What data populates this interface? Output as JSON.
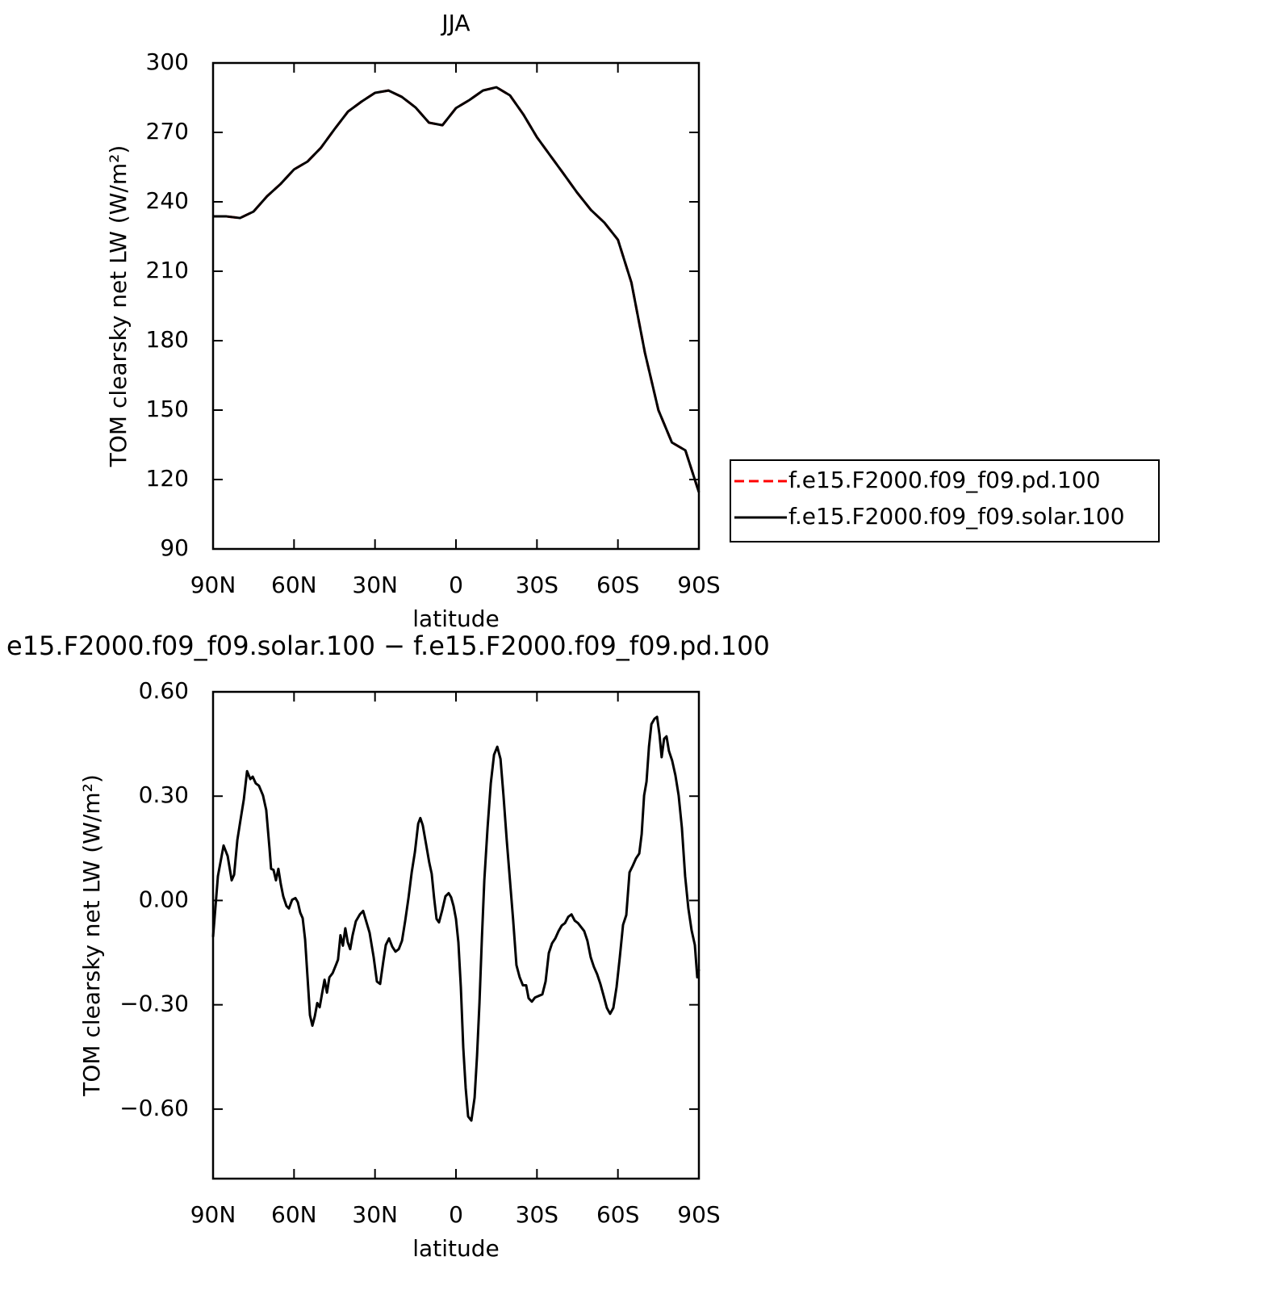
{
  "chart_data": [
    {
      "type": "line",
      "title": "JJA",
      "xlabel": "latitude",
      "ylabel": "TOM clearsky net LW (W/m²)",
      "x": [
        90,
        85,
        80,
        75,
        70,
        65,
        60,
        55,
        50,
        45,
        40,
        35,
        30,
        25,
        20,
        15,
        10,
        5,
        0,
        -5,
        -10,
        -15,
        -20,
        -25,
        -30,
        -35,
        -40,
        -45,
        -50,
        -55,
        -60,
        -65,
        -70,
        -75,
        -80,
        -85,
        -90
      ],
      "series": [
        {
          "name": "f.e15.F2000.f09_f09.pd.100",
          "color": "#ff0000",
          "linestyle": "dashed",
          "values": [
            233.7,
            233.7,
            233,
            235.8,
            242.4,
            247.7,
            254,
            257.4,
            263.4,
            271.4,
            279,
            283.3,
            287.1,
            288.1,
            285.3,
            280.8,
            274.2,
            273.1,
            280.5,
            284,
            288.1,
            289.5,
            286,
            277.7,
            267.9,
            259.9,
            251.9,
            243.8,
            236.5,
            231,
            223.6,
            205.1,
            174.8,
            150,
            136,
            132.6,
            114.5
          ]
        },
        {
          "name": "f.e15.F2000.f09_f09.solar.100",
          "color": "#000000",
          "linestyle": "solid",
          "values": [
            233.7,
            233.7,
            233,
            235.8,
            242.4,
            247.7,
            254,
            257.4,
            263.4,
            271.4,
            279,
            283.3,
            287.1,
            288.1,
            285.3,
            280.8,
            274.2,
            273.1,
            280.5,
            284,
            288.1,
            289.5,
            286,
            277.7,
            267.9,
            259.9,
            251.9,
            243.8,
            236.5,
            231,
            223.6,
            205.1,
            174.8,
            150,
            136,
            132.6,
            114.5
          ]
        }
      ],
      "xlim": [
        90,
        -90
      ],
      "xticks": [
        {
          "value": 90,
          "label": "90N"
        },
        {
          "value": 60,
          "label": "60N"
        },
        {
          "value": 30,
          "label": "30N"
        },
        0,
        {
          "value": -30,
          "label": "30S"
        },
        {
          "value": -60,
          "label": "60S"
        },
        {
          "value": -90,
          "label": "90S"
        }
      ],
      "ylim": [
        90,
        300
      ],
      "yticks": [
        90,
        120,
        150,
        180,
        210,
        240,
        270,
        300
      ],
      "legend": "right"
    },
    {
      "type": "line",
      "title": "e15.F2000.f09_f09.solar.100 − f.e15.F2000.f09_f09.pd.100",
      "xlabel": "latitude",
      "ylabel": "TOM clearsky net LW (W/m²)",
      "x": [
        90,
        88.2,
        86.1,
        84.6,
        83.1,
        82.2,
        81.0,
        79.8,
        78.6,
        77.4,
        76.2,
        75.3,
        74.2,
        73.0,
        71.5,
        70.3,
        69.1,
        68.5,
        67.6,
        66.7,
        65.8,
        64.9,
        64.0,
        62.8,
        61.9,
        60.7,
        59.5,
        58.6,
        57.7,
        56.8,
        55.9,
        55.0,
        54.1,
        53.2,
        52.3,
        51.4,
        50.5,
        49.6,
        48.7,
        47.8,
        46.9,
        45.7,
        44.5,
        43.7,
        42.8,
        41.9,
        41.0,
        40.1,
        39.2,
        38.3,
        37.1,
        35.6,
        34.4,
        32.0,
        30.5,
        29.3,
        28.1,
        26.9,
        26.0,
        24.8,
        23.6,
        22.4,
        21.2,
        20.0,
        18.8,
        17.6,
        16.4,
        15.2,
        14.0,
        13.2,
        12.3,
        11.1,
        9.9,
        9.0,
        8.1,
        7.2,
        6.3,
        5.1,
        3.9,
        2.7,
        1.8,
        0.9,
        0,
        -0.9,
        -1.8,
        -2.7,
        -3.6,
        -4.5,
        -5.7,
        -6.9,
        -7.8,
        -8.7,
        -9.6,
        -10.5,
        -11.7,
        -12.9,
        -14.1,
        -15.3,
        -16.5,
        -17.6,
        -18.8,
        -20.0,
        -21.2,
        -22.4,
        -23.6,
        -24.8,
        -26.0,
        -26.9,
        -28.1,
        -29.3,
        -30.8,
        -32.0,
        -33.2,
        -34.4,
        -35.6,
        -36.8,
        -38.0,
        -39.2,
        -40.4,
        -41.6,
        -42.8,
        -44.0,
        -45.2,
        -46.4,
        -47.5,
        -48.7,
        -49.9,
        -51.1,
        -52.3,
        -53.5,
        -54.7,
        -55.9,
        -57.1,
        -58.3,
        -59.5,
        -60.7,
        -61.9,
        -63.1,
        -64.3,
        -65.5,
        -66.7,
        -67.9,
        -68.8,
        -69.7,
        -70.6,
        -71.5,
        -72.4,
        -73.6,
        -74.5,
        -75.4,
        -76.2,
        -77.1,
        -78.0,
        -78.9,
        -80.1,
        -81.3,
        -82.5,
        -83.7,
        -84.9,
        -86.1,
        -87.3,
        -88.5,
        -89.4,
        -90
      ],
      "values": [
        -0.105,
        0.07,
        0.158,
        0.128,
        0.058,
        0.074,
        0.174,
        0.233,
        0.291,
        0.372,
        0.349,
        0.356,
        0.337,
        0.33,
        0.302,
        0.26,
        0.151,
        0.091,
        0.088,
        0.058,
        0.091,
        0.047,
        0.012,
        -0.016,
        -0.023,
        0.002,
        0.007,
        -0.005,
        -0.035,
        -0.051,
        -0.112,
        -0.221,
        -0.33,
        -0.36,
        -0.333,
        -0.295,
        -0.307,
        -0.267,
        -0.228,
        -0.265,
        -0.221,
        -0.209,
        -0.186,
        -0.17,
        -0.1,
        -0.13,
        -0.08,
        -0.12,
        -0.14,
        -0.1,
        -0.06,
        -0.04,
        -0.03,
        -0.093,
        -0.163,
        -0.233,
        -0.24,
        -0.174,
        -0.128,
        -0.109,
        -0.133,
        -0.147,
        -0.14,
        -0.116,
        -0.058,
        0.007,
        0.081,
        0.14,
        0.221,
        0.237,
        0.216,
        0.163,
        0.109,
        0.077,
        0.007,
        -0.053,
        -0.063,
        -0.028,
        0.012,
        0.021,
        0.009,
        -0.016,
        -0.053,
        -0.121,
        -0.249,
        -0.423,
        -0.54,
        -0.621,
        -0.633,
        -0.567,
        -0.447,
        -0.295,
        -0.109,
        0.058,
        0.209,
        0.337,
        0.419,
        0.442,
        0.407,
        0.302,
        0.174,
        0.058,
        -0.058,
        -0.186,
        -0.221,
        -0.244,
        -0.244,
        -0.281,
        -0.291,
        -0.279,
        -0.274,
        -0.27,
        -0.233,
        -0.151,
        -0.123,
        -0.109,
        -0.088,
        -0.072,
        -0.065,
        -0.047,
        -0.04,
        -0.058,
        -0.065,
        -0.077,
        -0.088,
        -0.116,
        -0.163,
        -0.191,
        -0.212,
        -0.24,
        -0.274,
        -0.309,
        -0.326,
        -0.309,
        -0.249,
        -0.163,
        -0.07,
        -0.042,
        0.081,
        0.1,
        0.121,
        0.135,
        0.191,
        0.302,
        0.342,
        0.442,
        0.507,
        0.523,
        0.528,
        0.477,
        0.412,
        0.465,
        0.472,
        0.43,
        0.402,
        0.36,
        0.302,
        0.209,
        0.07,
        -0.023,
        -0.086,
        -0.128,
        -0.221,
        -0.198
      ],
      "color": "#000000",
      "xlim": [
        90,
        -90
      ],
      "xticks": [
        {
          "value": 90,
          "label": "90N"
        },
        {
          "value": 60,
          "label": "60N"
        },
        {
          "value": 30,
          "label": "30N"
        },
        0,
        {
          "value": -30,
          "label": "30S"
        },
        {
          "value": -60,
          "label": "60S"
        },
        {
          "value": -90,
          "label": "90S"
        }
      ],
      "ylim": [
        -0.8,
        0.6
      ],
      "yticks": [
        {
          "value": -0.6,
          "label": "−0.60"
        },
        {
          "value": -0.3,
          "label": "−0.30"
        },
        {
          "value": 0,
          "label": "0.00"
        },
        {
          "value": 0.3,
          "label": "0.30"
        },
        {
          "value": 0.6,
          "label": "0.60"
        }
      ]
    }
  ]
}
